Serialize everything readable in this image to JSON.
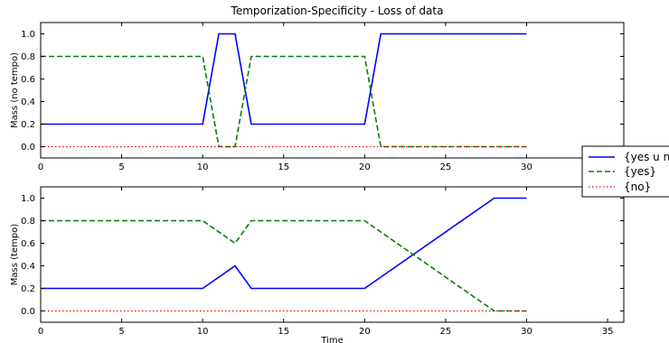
{
  "title": "Temporization-Specificity - Loss of data",
  "legend": {
    "placement": "right",
    "entries": [
      {
        "label": "{yes u no",
        "color": "#0000ff",
        "style": "solid"
      },
      {
        "label": "{yes}",
        "color": "#008000",
        "style": "dashed"
      },
      {
        "label": "{no}",
        "color": "#ff0000",
        "style": "dotted"
      }
    ]
  },
  "chart_data": [
    {
      "type": "line",
      "title": "Temporization-Specificity - Loss of data",
      "xlabel": "",
      "ylabel": "Mass (no tempo)",
      "xlim": [
        0,
        36
      ],
      "ylim": [
        -0.1,
        1.1
      ],
      "xticks": [
        "0",
        "5",
        "10",
        "15",
        "20",
        "25",
        "30"
      ],
      "yticks": [
        "0.0",
        "0.2",
        "0.4",
        "0.6",
        "0.8",
        "1.0"
      ],
      "grid": false,
      "series": [
        {
          "name": "{yes u no",
          "color": "#0000ff",
          "style": "solid",
          "points": [
            [
              0,
              0.2
            ],
            [
              10,
              0.2
            ],
            [
              11,
              1.0
            ],
            [
              12,
              1.0
            ],
            [
              13,
              0.2
            ],
            [
              20,
              0.2
            ],
            [
              21,
              1.0
            ],
            [
              30,
              1.0
            ]
          ]
        },
        {
          "name": "{yes}",
          "color": "#008000",
          "style": "dashed",
          "points": [
            [
              0,
              0.8
            ],
            [
              10,
              0.8
            ],
            [
              11,
              0.0
            ],
            [
              12,
              0.0
            ],
            [
              13,
              0.8
            ],
            [
              20,
              0.8
            ],
            [
              21,
              0.0
            ],
            [
              30,
              0.0
            ]
          ]
        },
        {
          "name": "{no}",
          "color": "#ff0000",
          "style": "dotted",
          "points": [
            [
              0,
              0.0
            ],
            [
              30,
              0.0
            ]
          ]
        }
      ]
    },
    {
      "type": "line",
      "xlabel": "Time",
      "ylabel": "Mass (tempo)",
      "xlim": [
        0,
        36
      ],
      "ylim": [
        -0.1,
        1.1
      ],
      "xticks": [
        "0",
        "5",
        "10",
        "15",
        "20",
        "25",
        "30",
        "35"
      ],
      "yticks": [
        "0.0",
        "0.2",
        "0.4",
        "0.6",
        "0.8",
        "1.0"
      ],
      "grid": false,
      "series": [
        {
          "name": "{yes u no",
          "color": "#0000ff",
          "style": "solid",
          "points": [
            [
              0,
              0.2
            ],
            [
              10,
              0.2
            ],
            [
              12,
              0.4
            ],
            [
              13,
              0.2
            ],
            [
              20,
              0.2
            ],
            [
              28,
              1.0
            ],
            [
              30,
              1.0
            ]
          ]
        },
        {
          "name": "{yes}",
          "color": "#008000",
          "style": "dashed",
          "points": [
            [
              0,
              0.8
            ],
            [
              10,
              0.8
            ],
            [
              12,
              0.6
            ],
            [
              13,
              0.8
            ],
            [
              20,
              0.8
            ],
            [
              28,
              0.0
            ],
            [
              30,
              0.0
            ]
          ]
        },
        {
          "name": "{no}",
          "color": "#ff0000",
          "style": "dotted",
          "points": [
            [
              0,
              0.0
            ],
            [
              30,
              0.0
            ]
          ]
        }
      ]
    }
  ]
}
